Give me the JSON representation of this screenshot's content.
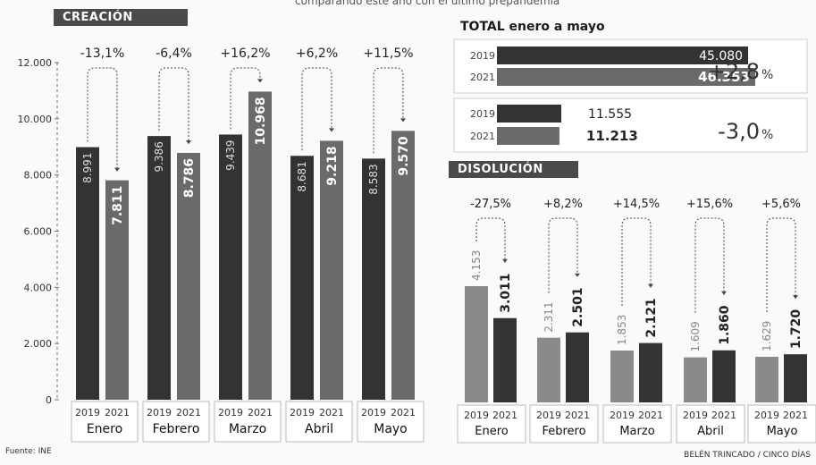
{
  "header": {
    "subtitle": "comparando este año con el último prepandemia"
  },
  "labels": {
    "creacion": "CREACIÓN",
    "disolucion": "DISOLUCIÓN",
    "total": "TOTAL enero a mayo"
  },
  "footer": {
    "source": "Fuente: INE",
    "credit": "BELÉN TRINCADO / CINCO DÍAS"
  },
  "colors": {
    "dark": "#333333",
    "mid": "#6a6a6a",
    "light": "#8a8a8a"
  },
  "chart_data": [
    {
      "type": "bar",
      "title": "CREACIÓN",
      "categories": [
        "Enero",
        "Febrero",
        "Marzo",
        "Abril",
        "Mayo"
      ],
      "series": [
        {
          "name": "2019",
          "values": [
            8991,
            9386,
            9439,
            8681,
            8583
          ],
          "labels": [
            "8.991",
            "9.386",
            "9.439",
            "8.681",
            "8.583"
          ]
        },
        {
          "name": "2021",
          "values": [
            7811,
            8786,
            10968,
            9218,
            9570
          ],
          "labels": [
            "7.811",
            "8.786",
            "10.968",
            "9.218",
            "9.570"
          ]
        }
      ],
      "changes": [
        "-13,1%",
        "-6,4%",
        "+16,2%",
        "+6,2%",
        "+11,5%"
      ],
      "ylim": [
        0,
        12000
      ],
      "yticks": [
        "0",
        "2.000",
        "4.000",
        "6.000",
        "8.000",
        "10.000",
        "12.000"
      ]
    },
    {
      "type": "bar",
      "title": "TOTAL enero a mayo",
      "groups": [
        {
          "name": "Creación",
          "rows": [
            {
              "year": "2019",
              "value": 45080,
              "label": "45.080"
            },
            {
              "year": "2021",
              "value": 46353,
              "label": "46.353"
            }
          ],
          "change": "+2,8%"
        },
        {
          "name": "Disolución",
          "rows": [
            {
              "year": "2019",
              "value": 11555,
              "label": "11.555"
            },
            {
              "year": "2021",
              "value": 11213,
              "label": "11.213"
            }
          ],
          "change": "-3,0%"
        }
      ]
    },
    {
      "type": "bar",
      "title": "DISOLUCIÓN",
      "categories": [
        "Enero",
        "Febrero",
        "Marzo",
        "Abril",
        "Mayo"
      ],
      "series": [
        {
          "name": "2019",
          "values": [
            4153,
            2311,
            1853,
            1609,
            1629
          ],
          "labels": [
            "4.153",
            "2.311",
            "1.853",
            "1.609",
            "1.629"
          ]
        },
        {
          "name": "2021",
          "values": [
            3011,
            2501,
            2121,
            1860,
            1720
          ],
          "labels": [
            "3.011",
            "2.501",
            "2.121",
            "1.860",
            "1.720"
          ]
        }
      ],
      "changes": [
        "-27,5%",
        "+8,2%",
        "+14,5%",
        "+15,6%",
        "+5,6%"
      ]
    }
  ]
}
